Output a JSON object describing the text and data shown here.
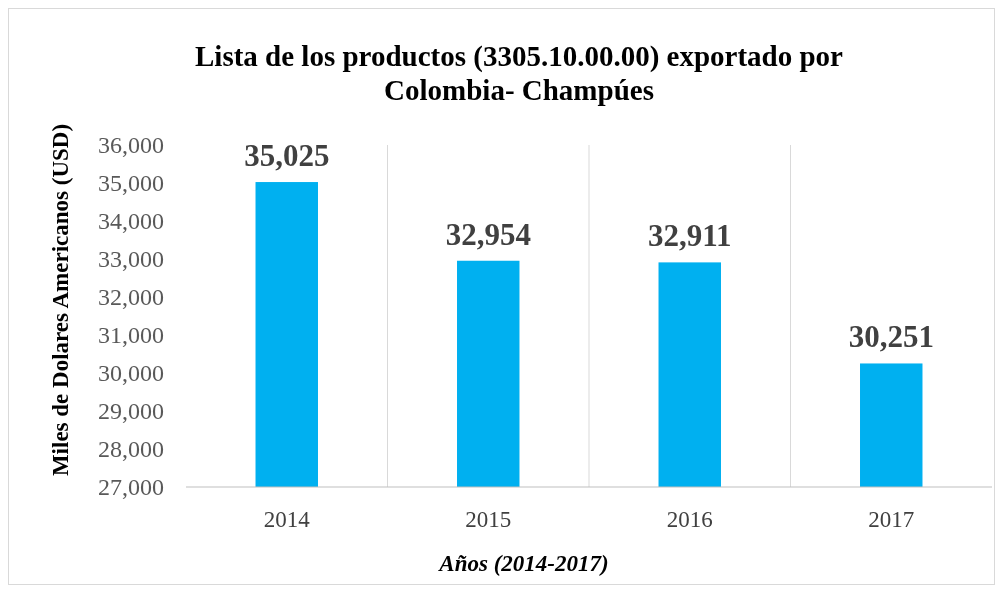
{
  "chart_data": {
    "type": "bar",
    "title": "Lista de los productos (3305.10.00.00) exportado por\nColombia- Champúes",
    "xlabel": "Años (2014-2017)",
    "ylabel": "Miles de Dolares Americanos (USD)",
    "categories": [
      "2014",
      "2015",
      "2016",
      "2017"
    ],
    "values": [
      35025,
      32954,
      32911,
      30251
    ],
    "color": "#00b0f0",
    "data_labels": true,
    "value_labels": [
      "35,025",
      "32,954",
      "32,911",
      "30,251"
    ],
    "ylim": [
      27000,
      36000
    ],
    "yticks": [
      {
        "value": 27000,
        "label": "27,000"
      },
      {
        "value": 28000,
        "label": "28,000"
      },
      {
        "value": 29000,
        "label": "29,000"
      },
      {
        "value": 30000,
        "label": "30,000"
      },
      {
        "value": 31000,
        "label": "31,000"
      },
      {
        "value": 32000,
        "label": "32,000"
      },
      {
        "value": 33000,
        "label": "33,000"
      },
      {
        "value": 34000,
        "label": "34,000"
      },
      {
        "value": 35000,
        "label": "35,000"
      },
      {
        "value": 36000,
        "label": "36,000"
      }
    ],
    "grid": "x"
  }
}
